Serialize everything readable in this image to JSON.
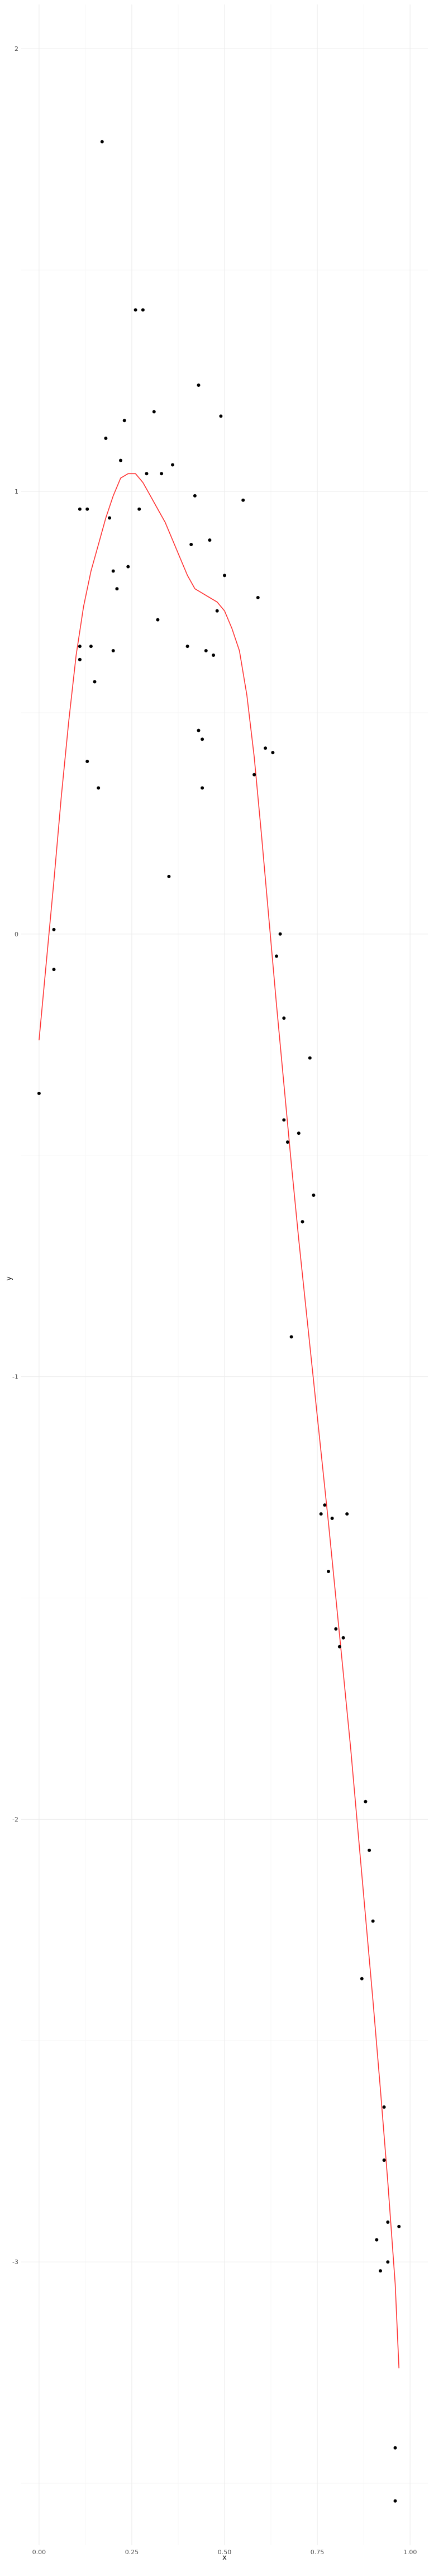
{
  "chart_data": {
    "type": "scatter",
    "title": "",
    "xlabel": "x",
    "ylabel": "y",
    "xlim": [
      -0.048,
      1.048
    ],
    "ylim": [
      -3.64,
      2.1
    ],
    "grid": true,
    "legend": "none",
    "x_ticks": [
      0.0,
      0.25,
      0.5,
      0.75,
      1.0
    ],
    "x_tick_labels": [
      "0.00",
      "0.25",
      "0.50",
      "0.75",
      "1.00"
    ],
    "y_ticks": [
      -3,
      -2,
      -1,
      0,
      1,
      2
    ],
    "y_tick_labels": [
      "-3",
      "-2",
      "-1",
      "0",
      "1",
      "2"
    ],
    "colors": {
      "points": "#000000",
      "smooth": "#ff3333",
      "grid_major": "#ebebeb",
      "grid_minor": "#f5f5f5",
      "text": "#4d4d4d"
    },
    "points": {
      "x": [
        0.0,
        0.04,
        0.04,
        0.11,
        0.11,
        0.11,
        0.11,
        0.13,
        0.13,
        0.14,
        0.15,
        0.16,
        0.17,
        0.18,
        0.19,
        0.2,
        0.2,
        0.21,
        0.22,
        0.23,
        0.24,
        0.26,
        0.27,
        0.28,
        0.29,
        0.31,
        0.32,
        0.33,
        0.35,
        0.36,
        0.4,
        0.41,
        0.42,
        0.43,
        0.43,
        0.44,
        0.44,
        0.45,
        0.46,
        0.47,
        0.48,
        0.49,
        0.5,
        0.55,
        0.58,
        0.59,
        0.61,
        0.63,
        0.64,
        0.65,
        0.66,
        0.66,
        0.67,
        0.68,
        0.7,
        0.71,
        0.73,
        0.74,
        0.76,
        0.77,
        0.78,
        0.79,
        0.8,
        0.81,
        0.82,
        0.83,
        0.87,
        0.88,
        0.89,
        0.9,
        0.91,
        0.92,
        0.93,
        0.93,
        0.94,
        0.94,
        0.96,
        0.96,
        0.97
      ],
      "y": [
        -0.36,
        -0.08,
        0.01,
        0.65,
        0.62,
        0.62,
        0.96,
        0.96,
        0.39,
        0.65,
        0.57,
        0.33,
        1.79,
        1.12,
        0.94,
        0.82,
        0.64,
        0.78,
        1.07,
        1.16,
        0.83,
        1.41,
        0.96,
        1.41,
        1.04,
        1.18,
        0.71,
        1.04,
        0.13,
        1.06,
        0.65,
        0.88,
        0.99,
        1.24,
        0.46,
        0.44,
        0.33,
        0.64,
        0.89,
        0.63,
        0.73,
        1.17,
        0.81,
        0.98,
        0.36,
        0.76,
        0.42,
        0.41,
        -0.05,
        0.0,
        -0.19,
        -0.42,
        -0.47,
        -0.91,
        -0.45,
        -0.65,
        -0.28,
        -0.59,
        -1.31,
        -1.29,
        -1.44,
        -1.32,
        -1.57,
        -1.61,
        -1.59,
        -1.31,
        -2.36,
        -1.96,
        -2.07,
        -2.23,
        -2.95,
        -3.02,
        -2.77,
        -2.65,
        -2.91,
        -3.0,
        -3.54,
        -3.42,
        -2.92
      ]
    },
    "smooth_line": {
      "x": [
        0.0,
        0.02,
        0.04,
        0.06,
        0.08,
        0.1,
        0.12,
        0.14,
        0.16,
        0.18,
        0.2,
        0.22,
        0.24,
        0.26,
        0.28,
        0.3,
        0.32,
        0.34,
        0.36,
        0.38,
        0.4,
        0.42,
        0.44,
        0.46,
        0.48,
        0.5,
        0.52,
        0.54,
        0.56,
        0.58,
        0.6,
        0.62,
        0.64,
        0.66,
        0.68,
        0.7,
        0.72,
        0.74,
        0.76,
        0.78,
        0.8,
        0.82,
        0.84,
        0.86,
        0.88,
        0.9,
        0.92,
        0.94,
        0.96,
        0.97
      ],
      "y": [
        -0.24,
        -0.06,
        0.12,
        0.31,
        0.48,
        0.63,
        0.74,
        0.82,
        0.88,
        0.94,
        0.99,
        1.03,
        1.04,
        1.04,
        1.02,
        0.99,
        0.96,
        0.93,
        0.89,
        0.85,
        0.81,
        0.78,
        0.77,
        0.76,
        0.75,
        0.73,
        0.69,
        0.64,
        0.54,
        0.4,
        0.22,
        0.03,
        -0.16,
        -0.34,
        -0.52,
        -0.69,
        -0.85,
        -1.01,
        -1.17,
        -1.33,
        -1.5,
        -1.67,
        -1.84,
        -2.03,
        -2.22,
        -2.41,
        -2.61,
        -2.82,
        -3.05,
        -3.24
      ]
    }
  }
}
